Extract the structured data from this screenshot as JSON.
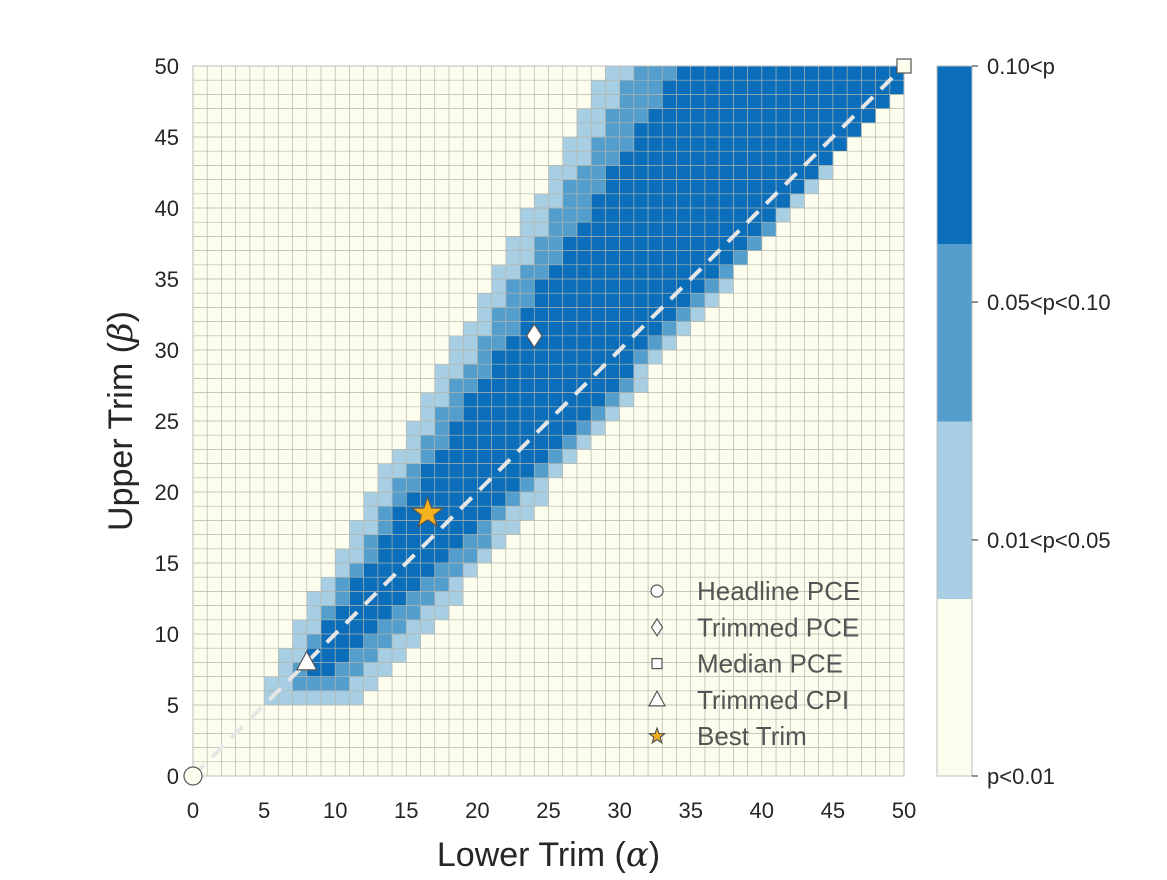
{
  "chart_data": {
    "type": "heatmap",
    "title": "",
    "xlabel": "Lower Trim (",
    "xlabel_symbol": "α",
    "xlabel_close": ")",
    "ylabel": "Upper Trim (",
    "ylabel_symbol": "β",
    "ylabel_close": ")",
    "xlim": [
      0,
      50
    ],
    "ylim": [
      0,
      50
    ],
    "grid_step": 1,
    "xticks": [
      0,
      5,
      10,
      15,
      20,
      25,
      30,
      35,
      40,
      45,
      50
    ],
    "yticks": [
      0,
      5,
      10,
      15,
      20,
      25,
      30,
      35,
      40,
      45,
      50
    ],
    "colorbar": {
      "levels": [
        {
          "label": "p<0.01",
          "color": "#FDFDEE"
        },
        {
          "label": "0.01<p<0.05",
          "color": "#A8CEE3"
        },
        {
          "label": "0.05<p<0.10",
          "color": "#549ECE"
        },
        {
          "label": "0.10<p",
          "color": "#0A6EBB"
        }
      ]
    },
    "regions": {
      "description_note": "",
      "bands": [
        {
          "level": 1,
          "y_from": 5,
          "y_to": 50,
          "x_lo_at_ymin": 5,
          "x_hi_at_ymin": 11,
          "x_lo_at_ymax": 30,
          "x_hi_at_ymax": 50
        },
        {
          "level": 2,
          "y_from": 6,
          "y_to": 50,
          "x_lo_at_ymin": 7,
          "x_hi_at_ymin": 10,
          "x_lo_at_ymax": 32,
          "x_hi_at_ymax": 50
        },
        {
          "level": 3,
          "y_from": 7,
          "y_to": 50,
          "x_lo_at_ymin": 8,
          "x_hi_at_ymin": 9,
          "x_lo_at_ymax": 35,
          "x_hi_at_ymax": 50
        }
      ]
    },
    "diagonal": {
      "from": [
        0,
        0
      ],
      "to": [
        50,
        50
      ],
      "color": "#E6E6E6",
      "style": "dashed"
    },
    "series": [
      {
        "name": "Headline PCE",
        "marker": "circle",
        "x": 0,
        "y": 0,
        "color": "#FDFDEE"
      },
      {
        "name": "Trimmed PCE",
        "marker": "diamond",
        "x": 24,
        "y": 31,
        "color": "#FFFFFF"
      },
      {
        "name": "Median PCE",
        "marker": "square",
        "x": 50,
        "y": 50,
        "color": "#FDFDEE"
      },
      {
        "name": "Trimmed CPI",
        "marker": "triangle",
        "x": 8,
        "y": 8,
        "color": "#FFFFFF"
      },
      {
        "name": "Best Trim",
        "marker": "star",
        "x": 16.5,
        "y": 18.5,
        "color": "#F5B21E"
      }
    ],
    "legend_position": "bottom-right"
  }
}
